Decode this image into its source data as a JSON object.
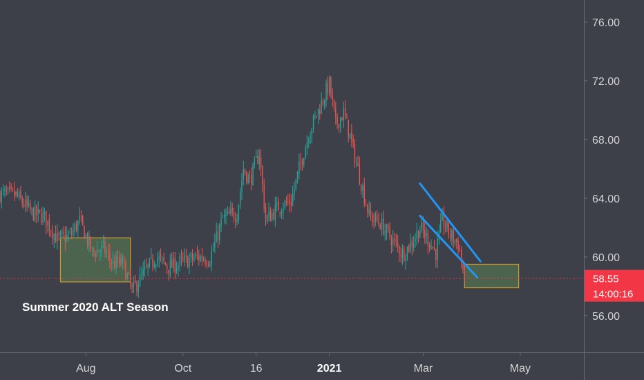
{
  "chart_data": {
    "type": "candlestick",
    "title": "",
    "xlabel": "",
    "ylabel": "",
    "ylim": [
      53.5,
      77.5
    ],
    "y_ticks": [
      "76.00",
      "72.00",
      "68.00",
      "64.00",
      "60.00",
      "56.00"
    ],
    "x_ticks": [
      {
        "label": "Aug",
        "date": "2020-08-01",
        "bold": false
      },
      {
        "label": "Oct",
        "date": "2020-10-01",
        "bold": false
      },
      {
        "label": "16",
        "date": "2020-11-16",
        "bold": false
      },
      {
        "label": "2021",
        "date": "2021-01-01",
        "bold": true
      },
      {
        "label": "Mar",
        "date": "2021-03-01",
        "bold": false
      },
      {
        "label": "May",
        "date": "2021-05-01",
        "bold": false
      }
    ],
    "x_range": [
      "2020-06-08",
      "2021-06-10"
    ],
    "current_price": {
      "value": 58.55,
      "label": "58.55",
      "countdown": "14:00:16",
      "color": "#f23645"
    },
    "colors": {
      "up": "#26a69a",
      "down": "#ef5350",
      "background": "#3e4049",
      "channel": "#2196f3",
      "zone_fill": "#4f6b4f",
      "zone_border": "#d19a2a"
    },
    "annotations": {
      "summer_label": "Summer 2020 ALT Season",
      "zones": [
        {
          "name": "summer-2020-zone",
          "x0": "2020-07-16",
          "x1": "2020-08-29",
          "y0": 58.3,
          "y1": 61.3
        },
        {
          "name": "target-zone",
          "x0": "2021-03-27",
          "x1": "2021-04-30",
          "y0": 57.9,
          "y1": 59.5
        }
      ],
      "channel_lines": [
        {
          "name": "channel-upper-line",
          "from": [
            "2021-02-27",
            65.0
          ],
          "to": [
            "2021-04-06",
            59.7
          ]
        },
        {
          "name": "channel-lower-line",
          "from": [
            "2021-02-27",
            62.8
          ],
          "to": [
            "2021-04-04",
            58.6
          ]
        }
      ]
    },
    "anchors": [
      [
        "2020-06-08",
        64.3
      ],
      [
        "2020-06-18",
        64.2
      ],
      [
        "2020-06-28",
        63.0
      ],
      [
        "2020-07-06",
        62.7
      ],
      [
        "2020-07-14",
        61.2
      ],
      [
        "2020-07-22",
        61.4
      ],
      [
        "2020-07-28",
        62.5
      ],
      [
        "2020-08-05",
        60.3
      ],
      [
        "2020-08-12",
        60.6
      ],
      [
        "2020-08-18",
        59.5
      ],
      [
        "2020-08-24",
        59.6
      ],
      [
        "2020-08-30",
        57.7
      ],
      [
        "2020-09-06",
        58.8
      ],
      [
        "2020-09-14",
        60.0
      ],
      [
        "2020-09-22",
        59.3
      ],
      [
        "2020-09-30",
        59.6
      ],
      [
        "2020-10-10",
        60.0
      ],
      [
        "2020-10-18",
        59.9
      ],
      [
        "2020-10-26",
        62.6
      ],
      [
        "2020-11-04",
        63.0
      ],
      [
        "2020-11-08",
        66.0
      ],
      [
        "2020-11-12",
        65.2
      ],
      [
        "2020-11-18",
        67.1
      ],
      [
        "2020-11-22",
        62.5
      ],
      [
        "2020-11-30",
        63.4
      ],
      [
        "2020-12-08",
        63.8
      ],
      [
        "2020-12-14",
        66.4
      ],
      [
        "2020-12-20",
        68.7
      ],
      [
        "2020-12-26",
        70.2
      ],
      [
        "2021-01-01",
        71.8
      ],
      [
        "2021-01-05",
        69.0
      ],
      [
        "2021-01-10",
        69.8
      ],
      [
        "2021-01-14",
        68.2
      ],
      [
        "2021-01-20",
        65.5
      ],
      [
        "2021-01-26",
        62.8
      ],
      [
        "2021-02-02",
        62.3
      ],
      [
        "2021-02-10",
        61.1
      ],
      [
        "2021-02-16",
        60.2
      ],
      [
        "2021-02-22",
        61.0
      ],
      [
        "2021-02-27",
        62.0
      ],
      [
        "2021-03-04",
        61.2
      ],
      [
        "2021-03-09",
        60.3
      ],
      [
        "2021-03-13",
        62.5
      ],
      [
        "2021-03-18",
        61.5
      ],
      [
        "2021-03-23",
        60.9
      ],
      [
        "2021-03-27",
        58.55
      ]
    ]
  }
}
